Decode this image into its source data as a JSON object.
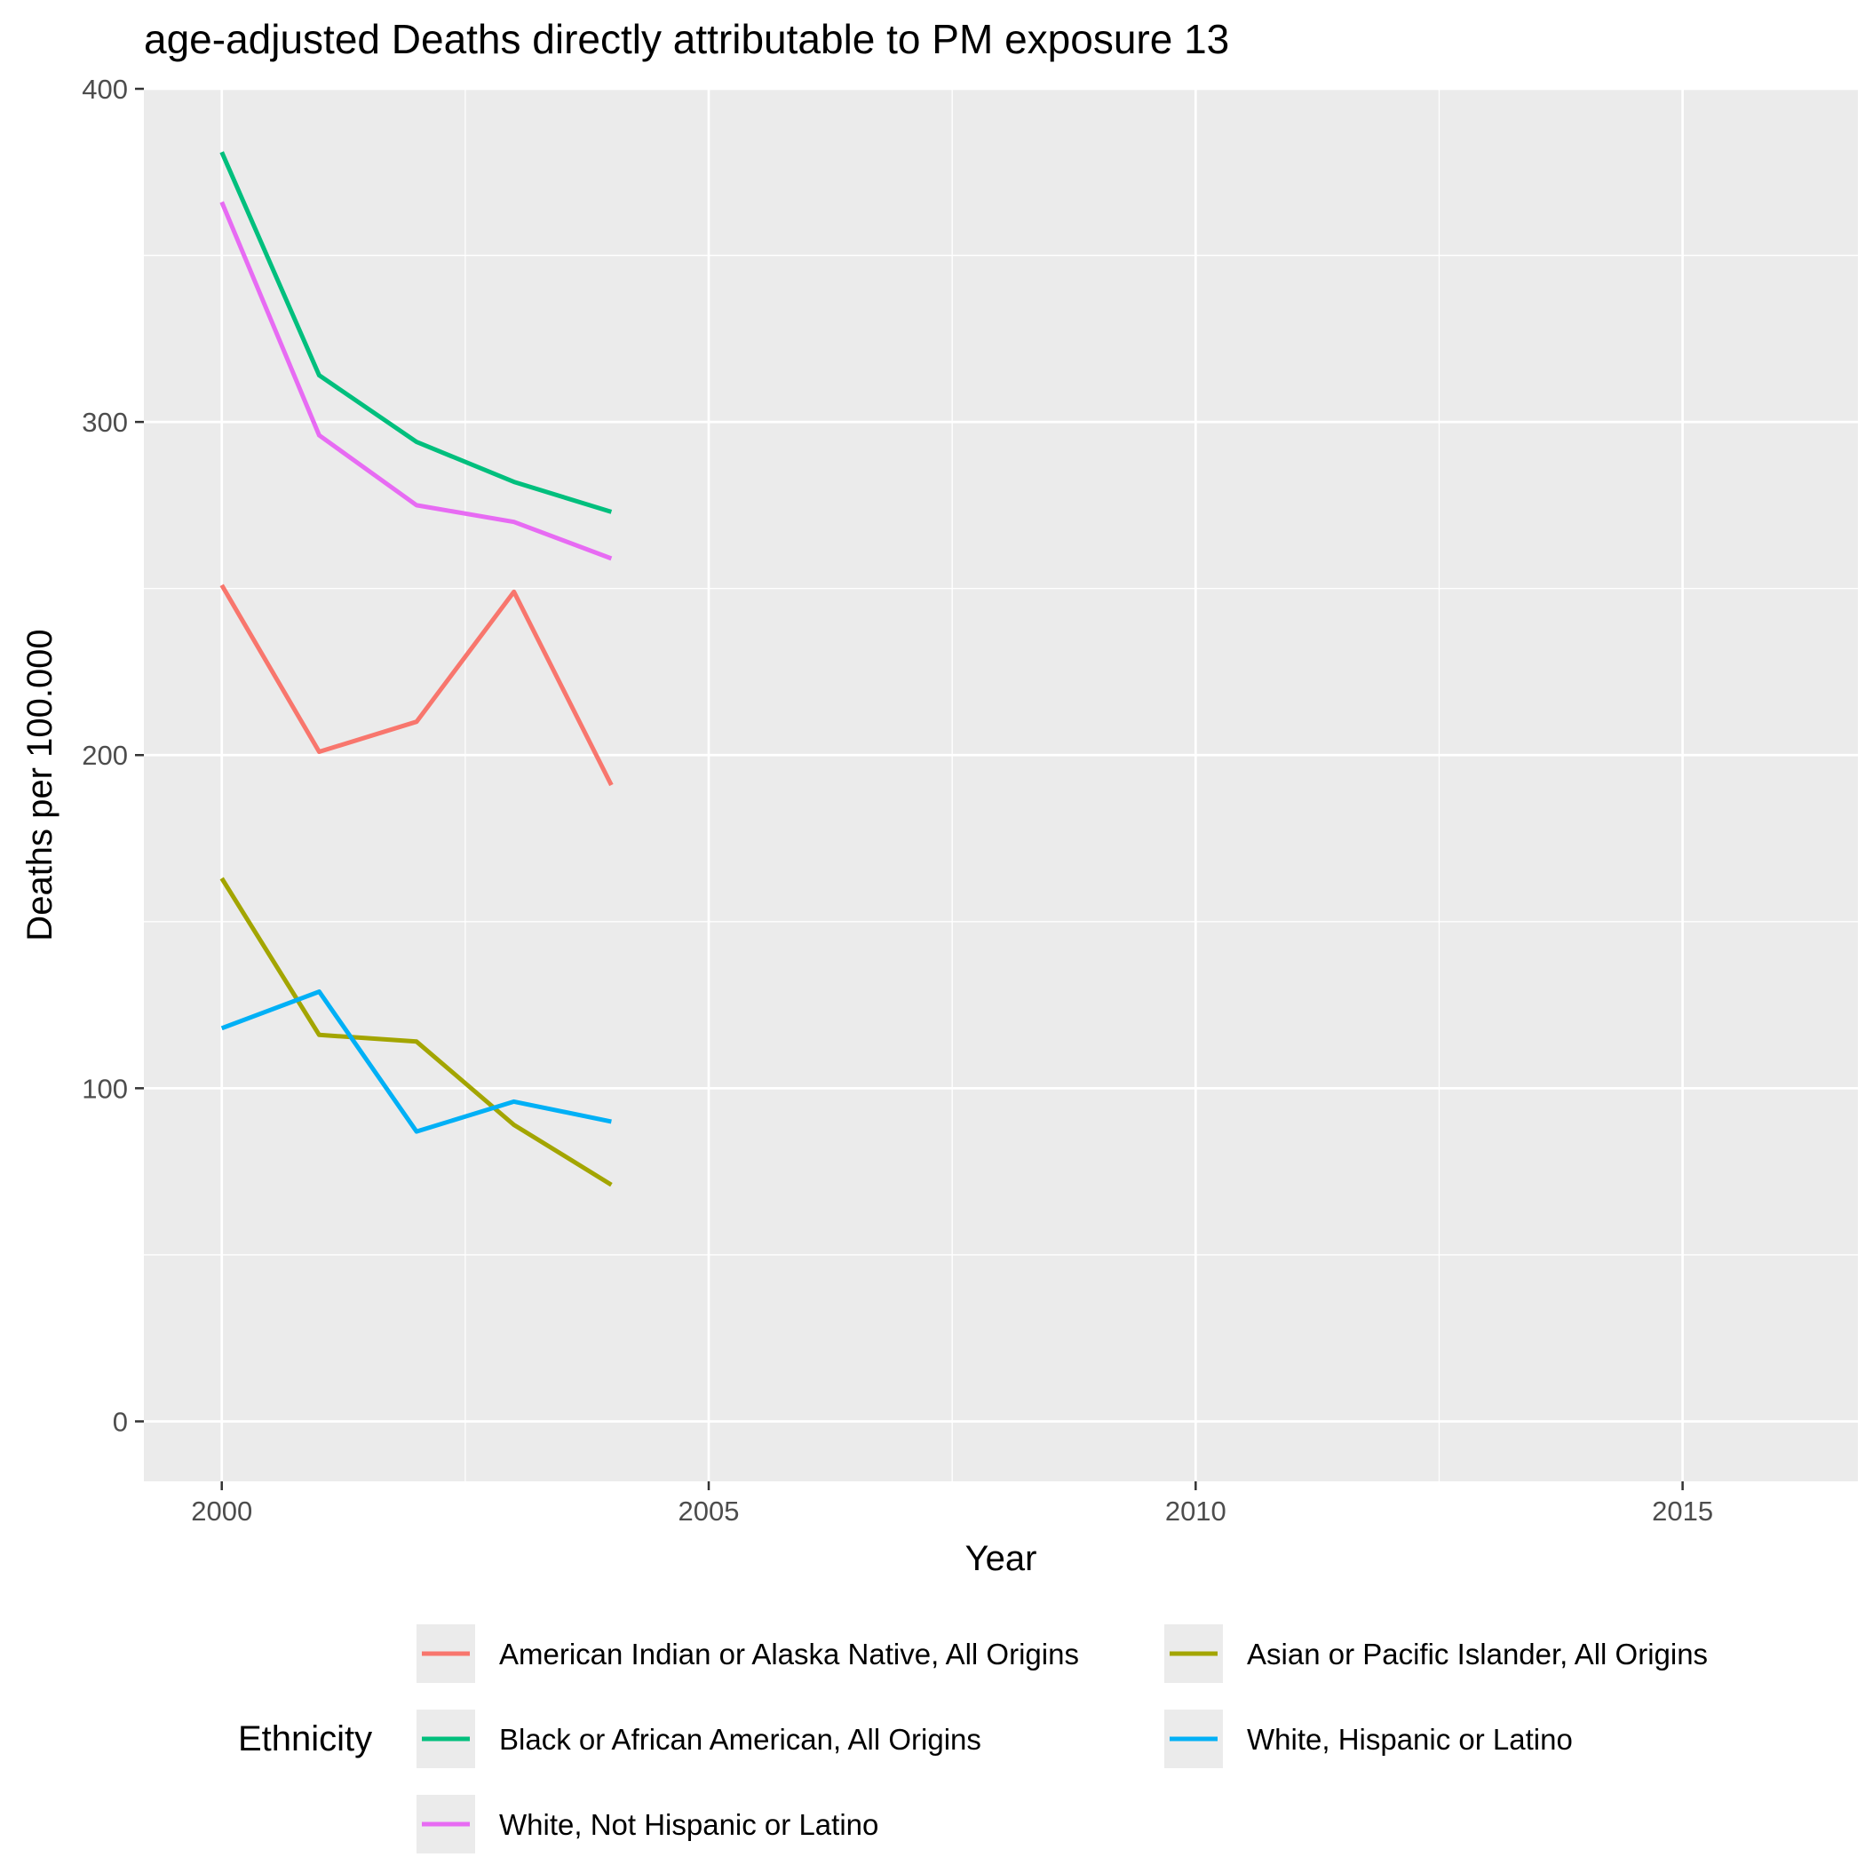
{
  "chart_data": {
    "type": "line",
    "title": "age-adjusted Deaths directly attributable to PM exposure 13",
    "xlabel": "Year",
    "ylabel": "Deaths per 100.000",
    "xlim": [
      1999.2,
      2016.8
    ],
    "ylim": [
      -18,
      400
    ],
    "x_ticks": [
      2000,
      2005,
      2010,
      2015
    ],
    "x_tick_labels": [
      "2000",
      "2005",
      "2010",
      "2015"
    ],
    "y_ticks": [
      0,
      100,
      200,
      300,
      400
    ],
    "y_tick_labels": [
      "0",
      "100",
      "200",
      "300",
      "400"
    ],
    "grid": true,
    "legend_title": "Ethnicity",
    "legend_position": "bottom",
    "x": [
      2000,
      2001,
      2002,
      2003,
      2004
    ],
    "series": [
      {
        "name": "American Indian or Alaska Native, All Origins",
        "color": "#F8766D",
        "values": [
          251,
          201,
          210,
          249,
          191
        ]
      },
      {
        "name": "Asian or Pacific Islander, All Origins",
        "color": "#A3A500",
        "values": [
          163,
          116,
          114,
          89,
          71
        ]
      },
      {
        "name": "Black or African American, All Origins",
        "color": "#00BF7D",
        "values": [
          381,
          314,
          294,
          282,
          273
        ]
      },
      {
        "name": "White, Hispanic or Latino",
        "color": "#00B0F6",
        "values": [
          118,
          129,
          87,
          96,
          90
        ]
      },
      {
        "name": "White, Not Hispanic or Latino",
        "color": "#E76BF3",
        "values": [
          366,
          296,
          275,
          270,
          259
        ]
      }
    ]
  }
}
